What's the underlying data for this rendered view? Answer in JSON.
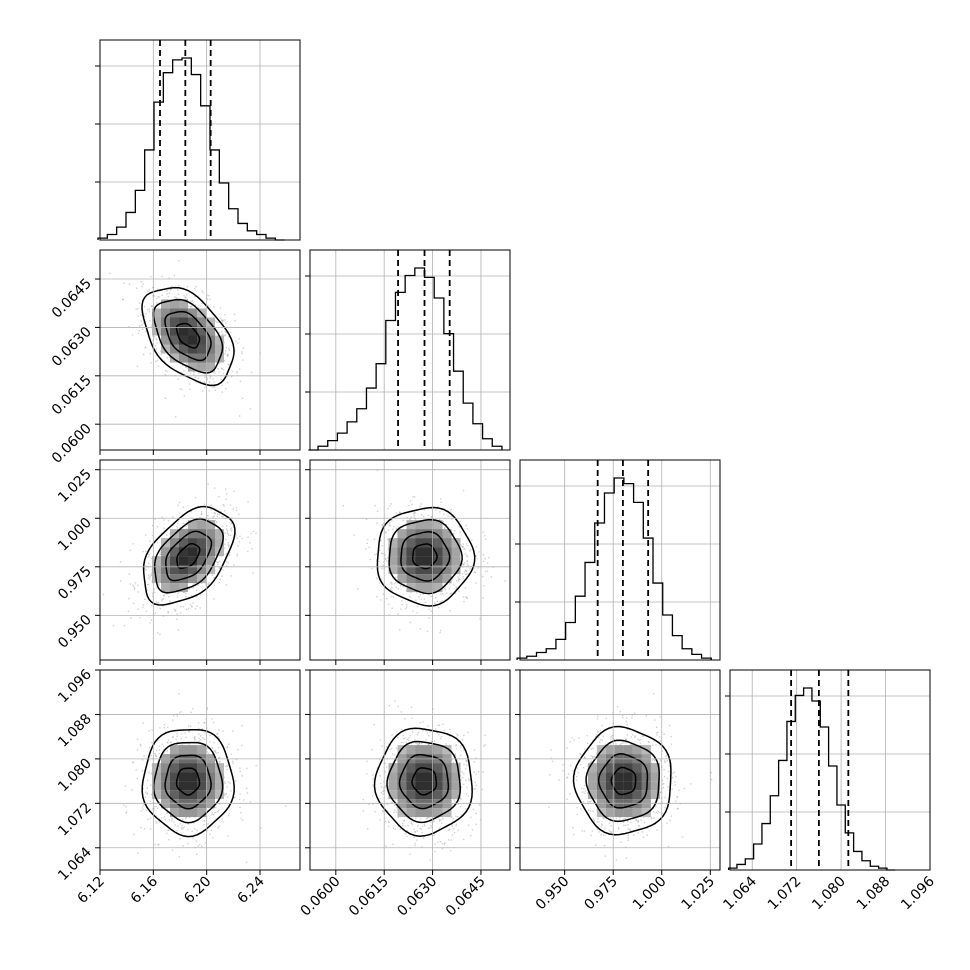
{
  "chart_data": {
    "type": "corner",
    "title": "",
    "grid": true,
    "parameters": [
      {
        "ticks": [
          6.12,
          6.16,
          6.2,
          6.24
        ],
        "tick_labels": [
          "6.12",
          "6.16",
          "6.20",
          "6.24"
        ],
        "range": [
          6.12,
          6.27
        ],
        "quantiles": [
          6.165,
          6.184,
          6.203
        ],
        "hist_bins": [
          6.122,
          6.129,
          6.136,
          6.143,
          6.15,
          6.157,
          6.164,
          6.171,
          6.178,
          6.185,
          6.192,
          6.199,
          6.206,
          6.213,
          6.22,
          6.227,
          6.234,
          6.241,
          6.248,
          6.255
        ],
        "hist_counts": [
          1,
          3,
          7,
          15,
          27,
          49,
          75,
          91,
          98,
          99,
          90,
          73,
          49,
          31,
          17,
          9,
          5,
          3,
          1,
          0
        ]
      },
      {
        "ticks": [
          0.06,
          0.0615,
          0.063,
          0.0645
        ],
        "tick_labels": [
          "0.0600",
          "0.0615",
          "0.0630",
          "0.0645"
        ],
        "range": [
          0.0592,
          0.0654
        ],
        "quantiles": [
          0.06193,
          0.06275,
          0.06353
        ],
        "hist_bins": [
          0.0593,
          0.0596,
          0.0599,
          0.0602,
          0.0605,
          0.0608,
          0.0611,
          0.0614,
          0.0617,
          0.062,
          0.0623,
          0.0626,
          0.0629,
          0.0632,
          0.0635,
          0.0638,
          0.0641,
          0.0644,
          0.0647,
          0.065
        ],
        "hist_counts": [
          0,
          2,
          5,
          9,
          15,
          22,
          33,
          46,
          69,
          84,
          93,
          97,
          92,
          81,
          62,
          42,
          25,
          14,
          6,
          2
        ]
      },
      {
        "ticks": [
          0.95,
          0.975,
          1.0,
          1.025
        ],
        "tick_labels": [
          "0.950",
          "0.975",
          "1.000",
          "1.025"
        ],
        "range": [
          0.927,
          1.03
        ],
        "quantiles": [
          0.967,
          0.98,
          0.993
        ],
        "hist_bins": [
          0.928,
          0.933,
          0.938,
          0.943,
          0.948,
          0.953,
          0.958,
          0.963,
          0.968,
          0.973,
          0.978,
          0.983,
          0.988,
          0.993,
          0.998,
          1.003,
          1.008,
          1.013,
          1.018,
          1.023
        ],
        "hist_counts": [
          1,
          2,
          4,
          6,
          11,
          20,
          34,
          52,
          73,
          89,
          97,
          94,
          84,
          65,
          41,
          24,
          13,
          6,
          3,
          1
        ]
      },
      {
        "ticks": [
          1.064,
          1.072,
          1.08,
          1.088,
          1.096
        ],
        "tick_labels": [
          "1.064",
          "1.072",
          "1.080",
          "1.088",
          "1.096"
        ],
        "range": [
          1.06,
          1.096
        ],
        "quantiles": [
          1.071,
          1.076,
          1.0813
        ],
        "hist_bins": [
          1.0605,
          1.062,
          1.0635,
          1.065,
          1.0665,
          1.068,
          1.0695,
          1.071,
          1.0725,
          1.074,
          1.0755,
          1.077,
          1.0785,
          1.08,
          1.0815,
          1.083,
          1.0845,
          1.086,
          1.0875,
          1.089
        ],
        "hist_counts": [
          1,
          3,
          6,
          14,
          25,
          40,
          59,
          80,
          94,
          98,
          91,
          77,
          56,
          35,
          20,
          10,
          5,
          2,
          1,
          0
        ]
      }
    ],
    "pairs": [
      {
        "row": 1,
        "col": 0,
        "mean": [
          6.186,
          0.06275
        ],
        "sd": [
          0.017,
          0.00075
        ],
        "corr": -0.45
      },
      {
        "row": 2,
        "col": 0,
        "mean": [
          6.186,
          0.9805
        ],
        "sd": [
          0.017,
          0.0125
        ],
        "corr": 0.45
      },
      {
        "row": 2,
        "col": 1,
        "mean": [
          0.06275,
          0.9805
        ],
        "sd": [
          0.00075,
          0.0125
        ],
        "corr": 0.0
      },
      {
        "row": 3,
        "col": 0,
        "mean": [
          6.186,
          1.076
        ],
        "sd": [
          0.017,
          0.0048
        ],
        "corr": 0.0
      },
      {
        "row": 3,
        "col": 1,
        "mean": [
          0.06275,
          1.076
        ],
        "sd": [
          0.00075,
          0.0048
        ],
        "corr": 0.0
      },
      {
        "row": 3,
        "col": 2,
        "mean": [
          0.9805,
          1.076
        ],
        "sd": [
          0.0125,
          0.0048
        ],
        "corr": 0.0
      }
    ],
    "contour_levels_sigma": [
      0.5,
      1.0,
      1.5,
      2.0
    ]
  }
}
